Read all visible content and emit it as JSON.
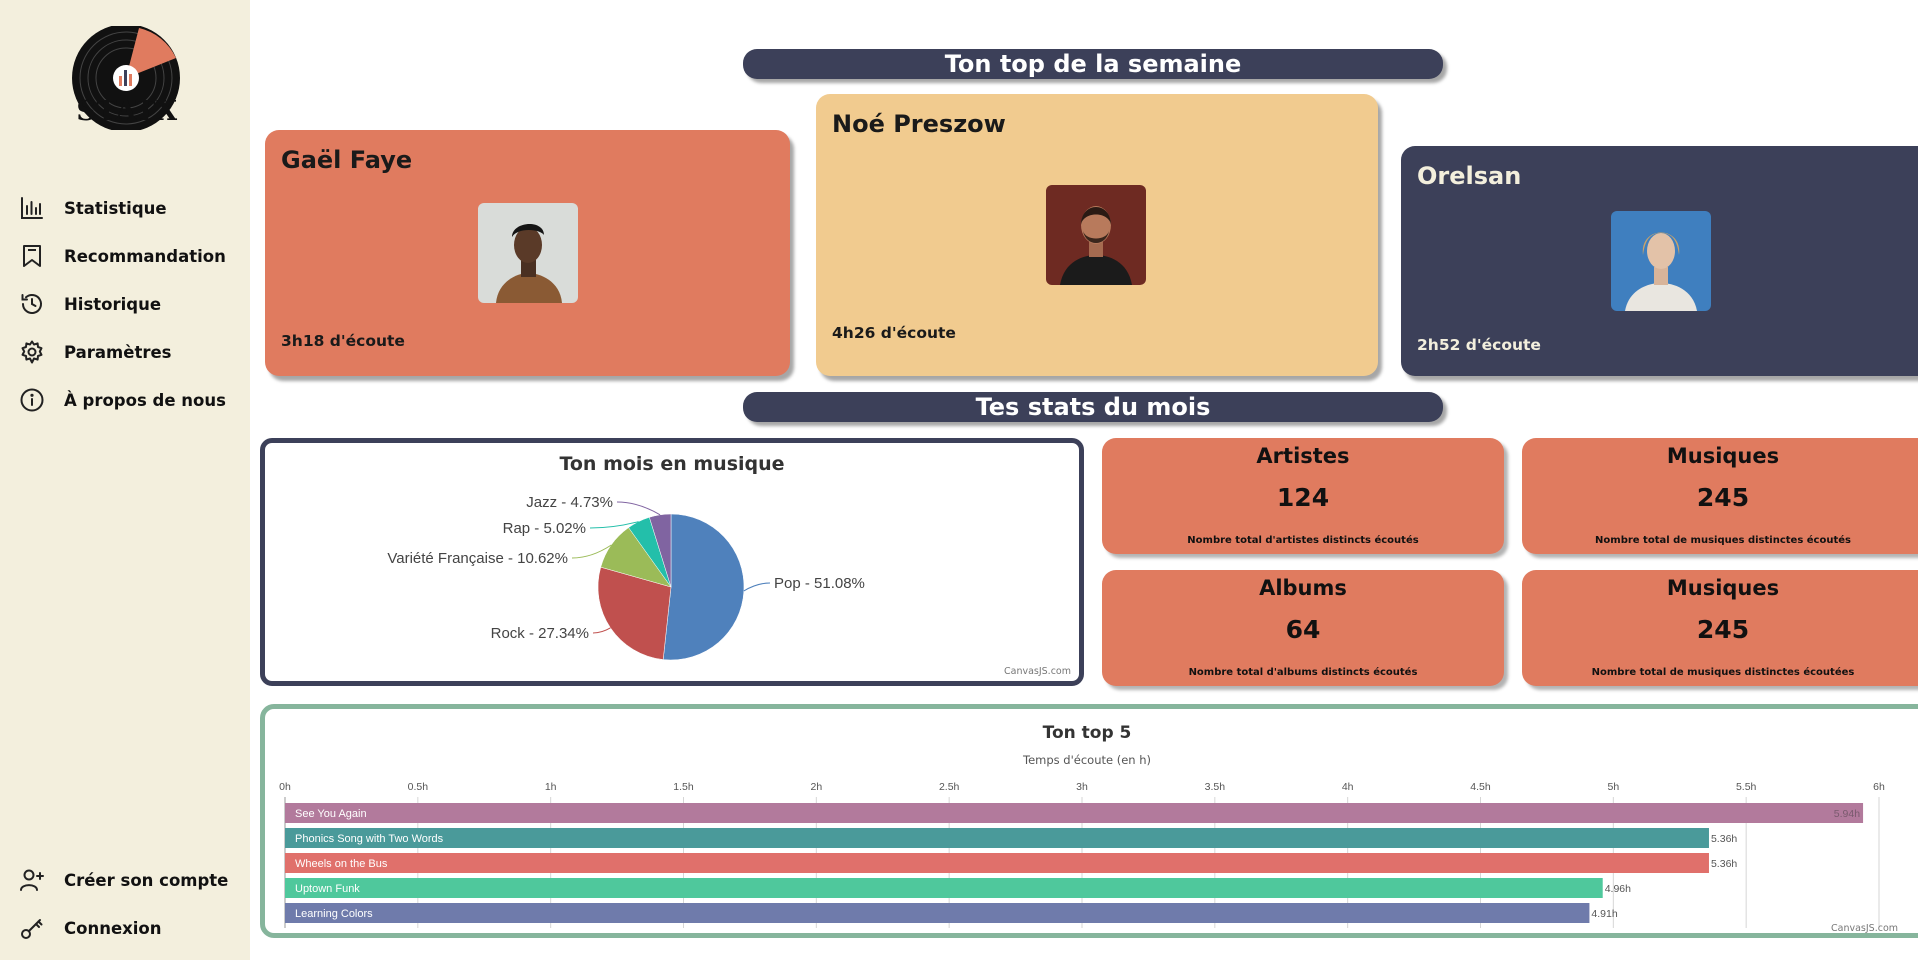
{
  "brand": {
    "name": "STATX"
  },
  "nav": {
    "top": [
      {
        "label": "Statistique",
        "icon": "bar-chart-icon"
      },
      {
        "label": "Recommandation",
        "icon": "bookmark-icon"
      },
      {
        "label": "Historique",
        "icon": "history-icon"
      },
      {
        "label": "Paramètres",
        "icon": "gear-icon"
      },
      {
        "label": "À propos de nous",
        "icon": "info-icon"
      }
    ],
    "bottom": [
      {
        "label": "Créer son compte",
        "icon": "user-plus-icon"
      },
      {
        "label": "Connexion",
        "icon": "key-icon"
      }
    ]
  },
  "weekly": {
    "title": "Ton top de la semaine",
    "artists": [
      {
        "name": "Gaël Faye",
        "time": "3h18 d'écoute",
        "color": "#e07b5f"
      },
      {
        "name": "Noé Preszow",
        "time": "4h26 d'écoute",
        "color": "#f1cb8f"
      },
      {
        "name": "Orelsan",
        "time": "2h52 d'écoute",
        "color": "#3c4059"
      }
    ]
  },
  "monthly": {
    "title": "Tes stats du mois",
    "stats": [
      {
        "label": "Artistes",
        "value": "124",
        "desc": "Nombre total d'artistes distincts écoutés"
      },
      {
        "label": "Musiques",
        "value": "245",
        "desc": "Nombre total de musiques distinctes écoutés"
      },
      {
        "label": "Albums",
        "value": "64",
        "desc": "Nombre total d'albums distincts écoutés"
      },
      {
        "label": "Musiques",
        "value": "245",
        "desc": "Nombre total de musiques distinctes écoutées"
      }
    ]
  },
  "credit": "CanvasJS.com",
  "chart_data": [
    {
      "type": "pie",
      "title": "Ton mois en musique",
      "slices": [
        {
          "label": "Pop - 51.08%",
          "value": 51.08,
          "color": "#4f81bc"
        },
        {
          "label": "Rock - 27.34%",
          "value": 27.34,
          "color": "#c0504e"
        },
        {
          "label": "Variété Française - 10.62%",
          "value": 10.62,
          "color": "#9bbb58"
        },
        {
          "label": "Rap - 5.02%",
          "value": 5.02,
          "color": "#23bfaa"
        },
        {
          "label": "Jazz - 4.73%",
          "value": 4.73,
          "color": "#8064a1"
        }
      ]
    },
    {
      "type": "bar",
      "title": "Ton top 5",
      "subtitle": "Temps d'écoute (en h)",
      "xlim": [
        0,
        6
      ],
      "ticks": [
        "0h",
        "0.5h",
        "1h",
        "1.5h",
        "2h",
        "2.5h",
        "3h",
        "3.5h",
        "4h",
        "4.5h",
        "5h",
        "5.5h",
        "6h"
      ],
      "grid": true,
      "bars": [
        {
          "label": "See You Again",
          "value": 5.94,
          "value_label": "5.94h",
          "color": "#b27a9c"
        },
        {
          "label": "Phonics Song with Two Words",
          "value": 5.36,
          "value_label": "5.36h",
          "color": "#4a9a9a"
        },
        {
          "label": "Wheels on the Bus",
          "value": 5.36,
          "value_label": "5.36h",
          "color": "#e0706b"
        },
        {
          "label": "Uptown Funk",
          "value": 4.96,
          "value_label": "4.96h",
          "color": "#4fc89c"
        },
        {
          "label": "Learning Colors",
          "value": 4.91,
          "value_label": "4.91h",
          "color": "#6f7bab"
        }
      ]
    }
  ]
}
